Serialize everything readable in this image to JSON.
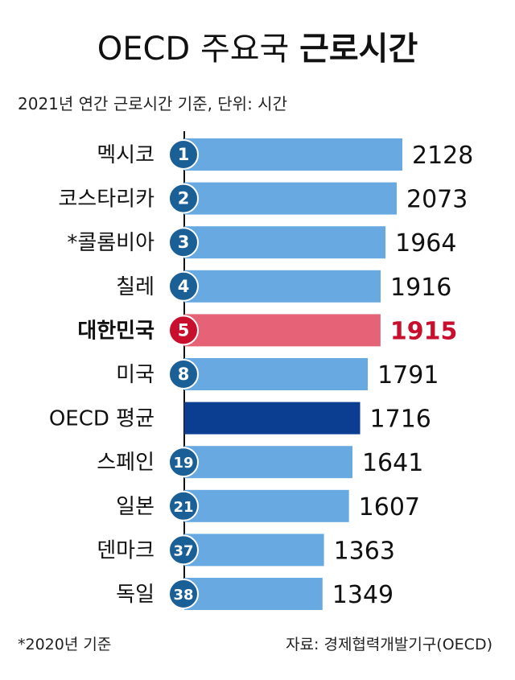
{
  "header": {
    "title_main": "OECD 주요국 ",
    "title_strong": "근로시간",
    "subtitle": "2021년 연간 근로시간 기준, 단위: 시간"
  },
  "footer": {
    "footnote": "*2020년 기준",
    "source": "자료: 경제협력개발기구(OECD)"
  },
  "colors": {
    "bar": "#67a9e0",
    "highlight_bar": "#e66377",
    "average_bar": "#0b3d91",
    "rank_circle": "#1b5f97",
    "highlight_circle": "#c8102e",
    "highlight_text": "#c8102e",
    "text": "#111111"
  },
  "chart_data": {
    "type": "bar",
    "orientation": "horizontal",
    "title": "OECD 주요국 근로시간",
    "subtitle": "2021년 연간 근로시간 기준, 단위: 시간",
    "categories": [
      "멕시코",
      "코스타리카",
      "*콜롬비아",
      "칠레",
      "대한민국",
      "미국",
      "OECD 평균",
      "스페인",
      "일본",
      "덴마크",
      "독일"
    ],
    "ranks": [
      "1",
      "2",
      "3",
      "4",
      "5",
      "8",
      "",
      "19",
      "21",
      "37",
      "38"
    ],
    "values": [
      2128,
      2073,
      1964,
      1916,
      1915,
      1791,
      1716,
      1641,
      1607,
      1363,
      1349
    ],
    "highlight_index": 4,
    "average_index": 6,
    "xlim": [
      0,
      2128
    ],
    "grid": false,
    "legend": "none"
  }
}
